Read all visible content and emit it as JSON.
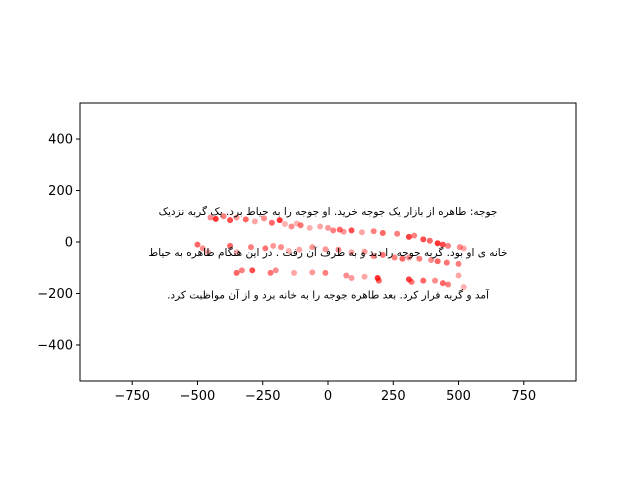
{
  "chart_data": {
    "type": "scatter",
    "title": "",
    "xlabel": "",
    "ylabel": "",
    "xlim": [
      -950,
      950
    ],
    "ylim": [
      -540,
      540
    ],
    "xticks": [
      -750,
      -500,
      -250,
      0,
      250,
      500,
      750
    ],
    "yticks": [
      -400,
      -200,
      0,
      200,
      400
    ],
    "xtick_labels": [
      "−750",
      "−500",
      "−250",
      "0",
      "250",
      "500",
      "750"
    ],
    "ytick_labels": [
      "−400",
      "−200",
      "0",
      "200",
      "400"
    ],
    "grid": false,
    "marker_color": "#ff0000",
    "axes_color": "#000000",
    "background": "#ffffff",
    "text_lines": [
      {
        "text": "جوجه: طاهره از بازار یک جوجه خرید. او جوجه را به حیاط برد. یک گربه نزدیک",
        "x": 0,
        "y": 105
      },
      {
        "text": "خانه ی او بود. گربه جوجه را دید و به طرف آن رفت . در این هنگام طاهره به حیاط",
        "x": 0,
        "y": -55
      },
      {
        "text": "آمد و گربه فرار کرد. بعد طاهره جوجه را به خانه برد و از آن مواظبت کرد.",
        "x": 0,
        "y": -220
      }
    ],
    "points": [
      {
        "x": -450,
        "y": 95,
        "a": 0.45
      },
      {
        "x": -430,
        "y": 90,
        "a": 0.8
      },
      {
        "x": -400,
        "y": 100,
        "a": 0.5
      },
      {
        "x": -375,
        "y": 85,
        "a": 0.7
      },
      {
        "x": -350,
        "y": 95,
        "a": 0.4
      },
      {
        "x": -315,
        "y": 88,
        "a": 0.6
      },
      {
        "x": -280,
        "y": 80,
        "a": 0.35
      },
      {
        "x": -245,
        "y": 92,
        "a": 0.45
      },
      {
        "x": -215,
        "y": 75,
        "a": 0.6
      },
      {
        "x": -185,
        "y": 85,
        "a": 0.8
      },
      {
        "x": -165,
        "y": 70,
        "a": 0.3
      },
      {
        "x": -140,
        "y": 60,
        "a": 0.45
      },
      {
        "x": -120,
        "y": 72,
        "a": 0.3
      },
      {
        "x": -105,
        "y": 65,
        "a": 0.55
      },
      {
        "x": -70,
        "y": 55,
        "a": 0.3
      },
      {
        "x": -30,
        "y": 60,
        "a": 0.35
      },
      {
        "x": 0,
        "y": 55,
        "a": 0.4
      },
      {
        "x": 20,
        "y": 45,
        "a": 0.5
      },
      {
        "x": 45,
        "y": 48,
        "a": 0.6
      },
      {
        "x": 60,
        "y": 40,
        "a": 0.4
      },
      {
        "x": 90,
        "y": 45,
        "a": 0.7
      },
      {
        "x": 130,
        "y": 38,
        "a": 0.35
      },
      {
        "x": 175,
        "y": 42,
        "a": 0.5
      },
      {
        "x": 210,
        "y": 35,
        "a": 0.6
      },
      {
        "x": 265,
        "y": 32,
        "a": 0.5
      },
      {
        "x": 310,
        "y": 20,
        "a": 0.75
      },
      {
        "x": 330,
        "y": 25,
        "a": 0.5
      },
      {
        "x": 365,
        "y": 10,
        "a": 0.7
      },
      {
        "x": 390,
        "y": 5,
        "a": 0.6
      },
      {
        "x": 420,
        "y": -5,
        "a": 0.8
      },
      {
        "x": 440,
        "y": -10,
        "a": 0.7
      },
      {
        "x": 460,
        "y": -15,
        "a": 0.5
      },
      {
        "x": 505,
        "y": -20,
        "a": 0.45
      },
      {
        "x": 520,
        "y": -25,
        "a": 0.35
      },
      {
        "x": -500,
        "y": -10,
        "a": 0.6
      },
      {
        "x": -480,
        "y": -25,
        "a": 0.45
      },
      {
        "x": -460,
        "y": -40,
        "a": 0.35
      },
      {
        "x": -375,
        "y": -15,
        "a": 0.6
      },
      {
        "x": -350,
        "y": -40,
        "a": 0.3
      },
      {
        "x": -295,
        "y": -20,
        "a": 0.5
      },
      {
        "x": -240,
        "y": -25,
        "a": 0.55
      },
      {
        "x": -210,
        "y": -15,
        "a": 0.4
      },
      {
        "x": -180,
        "y": -20,
        "a": 0.45
      },
      {
        "x": -150,
        "y": -35,
        "a": 0.3
      },
      {
        "x": -110,
        "y": -30,
        "a": 0.35
      },
      {
        "x": -60,
        "y": -20,
        "a": 0.4
      },
      {
        "x": -10,
        "y": -28,
        "a": 0.4
      },
      {
        "x": 40,
        "y": -30,
        "a": 0.45
      },
      {
        "x": 90,
        "y": -40,
        "a": 0.35
      },
      {
        "x": 140,
        "y": -38,
        "a": 0.4
      },
      {
        "x": 175,
        "y": -55,
        "a": 0.45
      },
      {
        "x": 210,
        "y": -50,
        "a": 0.55
      },
      {
        "x": 255,
        "y": -60,
        "a": 0.5
      },
      {
        "x": 285,
        "y": -65,
        "a": 0.6
      },
      {
        "x": 310,
        "y": -60,
        "a": 0.45
      },
      {
        "x": 350,
        "y": -65,
        "a": 0.5
      },
      {
        "x": 395,
        "y": -70,
        "a": 0.45
      },
      {
        "x": 420,
        "y": -75,
        "a": 0.6
      },
      {
        "x": 455,
        "y": -80,
        "a": 0.55
      },
      {
        "x": 500,
        "y": -85,
        "a": 0.5
      },
      {
        "x": -350,
        "y": -120,
        "a": 0.6
      },
      {
        "x": -330,
        "y": -110,
        "a": 0.5
      },
      {
        "x": -290,
        "y": -110,
        "a": 0.7
      },
      {
        "x": -220,
        "y": -120,
        "a": 0.55
      },
      {
        "x": -200,
        "y": -110,
        "a": 0.45
      },
      {
        "x": -130,
        "y": -120,
        "a": 0.35
      },
      {
        "x": -60,
        "y": -118,
        "a": 0.4
      },
      {
        "x": -10,
        "y": -120,
        "a": 0.5
      },
      {
        "x": 70,
        "y": -130,
        "a": 0.45
      },
      {
        "x": 90,
        "y": -140,
        "a": 0.4
      },
      {
        "x": 140,
        "y": -135,
        "a": 0.35
      },
      {
        "x": 190,
        "y": -140,
        "a": 0.8
      },
      {
        "x": 195,
        "y": -150,
        "a": 0.6
      },
      {
        "x": 310,
        "y": -145,
        "a": 0.75
      },
      {
        "x": 320,
        "y": -155,
        "a": 0.55
      },
      {
        "x": 365,
        "y": -150,
        "a": 0.6
      },
      {
        "x": 410,
        "y": -150,
        "a": 0.45
      },
      {
        "x": 440,
        "y": -160,
        "a": 0.6
      },
      {
        "x": 460,
        "y": -165,
        "a": 0.5
      },
      {
        "x": 500,
        "y": -130,
        "a": 0.35
      },
      {
        "x": 520,
        "y": -175,
        "a": 0.3
      }
    ]
  }
}
